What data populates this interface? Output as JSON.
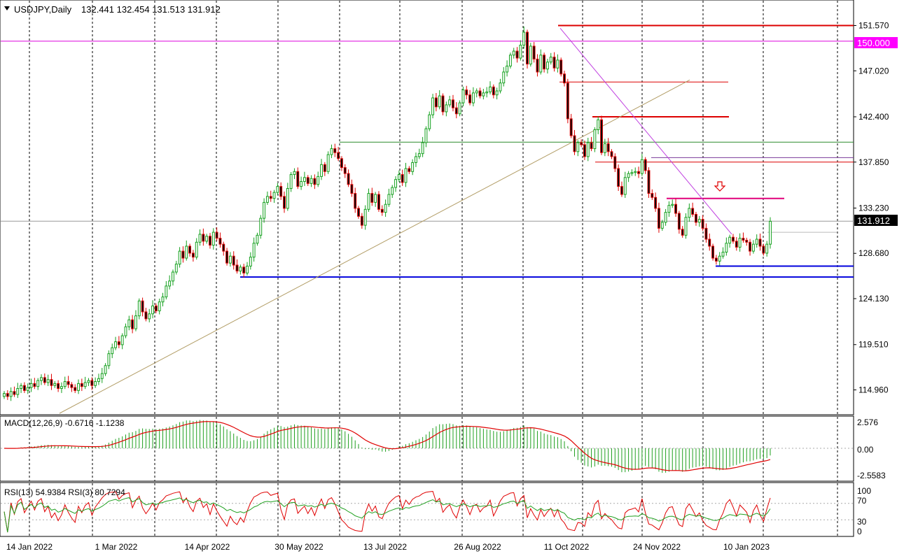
{
  "chart_data": {
    "type": "candlestick",
    "header": {
      "symbol": "USDJPY,Daily",
      "values": "132.441 132.454 131.513 131.912"
    },
    "price_ticks": [
      "151.570",
      "147.020",
      "142.400",
      "137.850",
      "133.230",
      "128.680",
      "124.130",
      "119.510",
      "114.960"
    ],
    "highlight_level": "150.000",
    "current_price": "131.912",
    "date_labels": [
      "14 Jan 2022",
      "1 Mar 2022",
      "14 Apr 2022",
      "30 May 2022",
      "13 Jul 2022",
      "26 Aug 2022",
      "11 Oct 2022",
      "24 Nov 2022",
      "10 Jan 2023"
    ],
    "closes": [
      114.6,
      114.3,
      114.8,
      114.5,
      115.1,
      115.4,
      114.9,
      115.2,
      115.6,
      115.3,
      115.9,
      116.2,
      115.7,
      116.0,
      115.4,
      115.6,
      115.1,
      115.3,
      115.8,
      115.5,
      115.2,
      114.9,
      115.6,
      115.3,
      115.7,
      115.9,
      115.4,
      115.8,
      116.1,
      116.6,
      117.4,
      118.6,
      119.2,
      119.8,
      119.5,
      120.4,
      121.3,
      122.0,
      121.1,
      122.4,
      123.9,
      122.8,
      122.1,
      122.6,
      123.4,
      122.9,
      123.8,
      124.3,
      125.4,
      125.9,
      126.8,
      127.6,
      128.9,
      128.2,
      129.4,
      128.7,
      128.3,
      129.8,
      130.6,
      129.9,
      130.4,
      129.5,
      130.8,
      130.2,
      129.6,
      128.9,
      127.7,
      128.4,
      127.5,
      126.9,
      127.3,
      126.7,
      127.4,
      128.3,
      129.7,
      130.5,
      132.2,
      133.8,
      134.4,
      134.2,
      134.8,
      135.4,
      134.4,
      133.2,
      135.2,
      136.6,
      136.9,
      135.4,
      135.9,
      136.3,
      135.7,
      136.2,
      135.6,
      136.4,
      137.6,
      136.9,
      138.6,
      139.2,
      138.8,
      138.2,
      137.3,
      136.7,
      135.6,
      134.7,
      133.2,
      132.4,
      131.5,
      133.1,
      134.7,
      133.8,
      134.6,
      133.1,
      132.8,
      133.6,
      134.6,
      135.3,
      136.1,
      136.6,
      135.8,
      137.2,
      136.9,
      137.8,
      138.4,
      138.7,
      139.8,
      141.2,
      142.6,
      144.3,
      143.4,
      144.5,
      142.9,
      143.6,
      144.1,
      143.3,
      142.7,
      143.8,
      145.1,
      144.6,
      143.8,
      144.8,
      145.0,
      144.5,
      144.8,
      144.9,
      145.4,
      144.6,
      145.0,
      145.8,
      146.9,
      147.5,
      148.6,
      149.0,
      148.3,
      149.6,
      150.9,
      147.7,
      149.5,
      148.2,
      146.9,
      148.6,
      147.2,
      147.9,
      148.4,
      147.3,
      148.1,
      146.7,
      145.8,
      142.2,
      140.5,
      138.9,
      139.8,
      139.6,
      138.4,
      139.8,
      139.2,
      141.1,
      142.1,
      138.8,
      139.7,
      138.9,
      138.4,
      137.2,
      135.4,
      134.6,
      136.3,
      136.7,
      136.8,
      136.9,
      136.7,
      138.1,
      137.0,
      134.7,
      134.3,
      133.2,
      131.2,
      131.8,
      132.8,
      133.5,
      133.6,
      132.7,
      131.1,
      130.5,
      132.3,
      133.2,
      132.6,
      131.8,
      132.1,
      131.2,
      130.1,
      129.4,
      128.2,
      127.9,
      128.4,
      128.8,
      129.7,
      130.3,
      129.9,
      129.3,
      130.2,
      130.0,
      129.8,
      128.9,
      129.6,
      130.1,
      129.4,
      128.7,
      129.6,
      131.9
    ]
  },
  "indicators": {
    "macd": {
      "label": "MACD(12,26,9) -0.6716 -1.1238",
      "ticks": [
        "2.576",
        "0.00",
        "-2.5583"
      ]
    },
    "rsi": {
      "label": "RSI(13) 54.9384  RSI(3) 80.7294",
      "ticks": [
        "100",
        "70",
        "30",
        "0"
      ]
    }
  },
  "colors": {
    "bull": "#14a01e",
    "bear": "#e00000",
    "resistance": "#dd0000",
    "support": "#0000dd",
    "level": "#dd00dd",
    "trend": "#b29d66",
    "green_line": "#2a8a2a"
  },
  "annotation_icon": "down-arrow-icon"
}
